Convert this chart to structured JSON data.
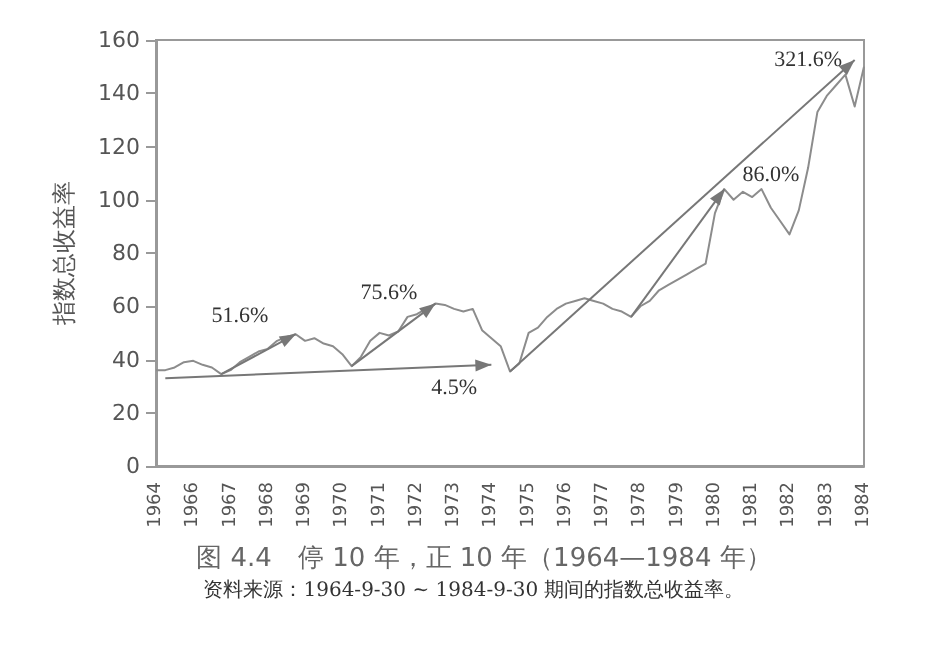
{
  "chart_data": {
    "type": "line",
    "title": "图 4.4　停 10 年，正 10 年（1964—1984 年）",
    "ylabel": "指数总收益率",
    "annotations": [
      "51.6%",
      "75.6%",
      "4.5%",
      {
        "text": "86.0%",
        "y": 104
      },
      "321.6%",
      "资料来源：1964-9-30 ~ 1984-9-30 期间的指数总收益率。"
    ],
    "categories": [
      "1964",
      null,
      null,
      null,
      "1966",
      null,
      null,
      null,
      "1967",
      null,
      null,
      null,
      "1968",
      null,
      null,
      null,
      "1969",
      null,
      null,
      null,
      "1970",
      null,
      null,
      null,
      "1971",
      null,
      null,
      null,
      "1972",
      null,
      null,
      null,
      "1973",
      null,
      null,
      null,
      "1974",
      null,
      null,
      null,
      "1975",
      null,
      null,
      null,
      "1976",
      null,
      null,
      null,
      "1977",
      null,
      null,
      null,
      "1978",
      null,
      null,
      null,
      "1979",
      null,
      null,
      null,
      "1980",
      null,
      null,
      null,
      "1981",
      null,
      null,
      null,
      "1982",
      null,
      null,
      null,
      "1983",
      null,
      null,
      null,
      "1984"
    ],
    "ylim": [
      0,
      160
    ],
    "yticks": [
      0,
      20,
      40,
      60,
      80,
      100,
      120,
      140,
      160
    ],
    "marker": "none",
    "series": [
      {
        "color": "#8c8c8c",
        "values": [
          36,
          36,
          37,
          39,
          39.5,
          38,
          37,
          34.5,
          36,
          39,
          41,
          43,
          44,
          47,
          48.5,
          49.5,
          47,
          48,
          46,
          45,
          42,
          37.5,
          41,
          47,
          50,
          49,
          50.5,
          56,
          57,
          59,
          61,
          60.5,
          59,
          58,
          59,
          51,
          48,
          45,
          35.5,
          38.5,
          50,
          52,
          56,
          59,
          61,
          62,
          63,
          62,
          61,
          59,
          58,
          56,
          60,
          62,
          66,
          68,
          70,
          72,
          74,
          76,
          95,
          104,
          100,
          103,
          101,
          104,
          97,
          92,
          87,
          96,
          112,
          133,
          139,
          143,
          147,
          135,
          150
        ]
      }
    ]
  }
}
